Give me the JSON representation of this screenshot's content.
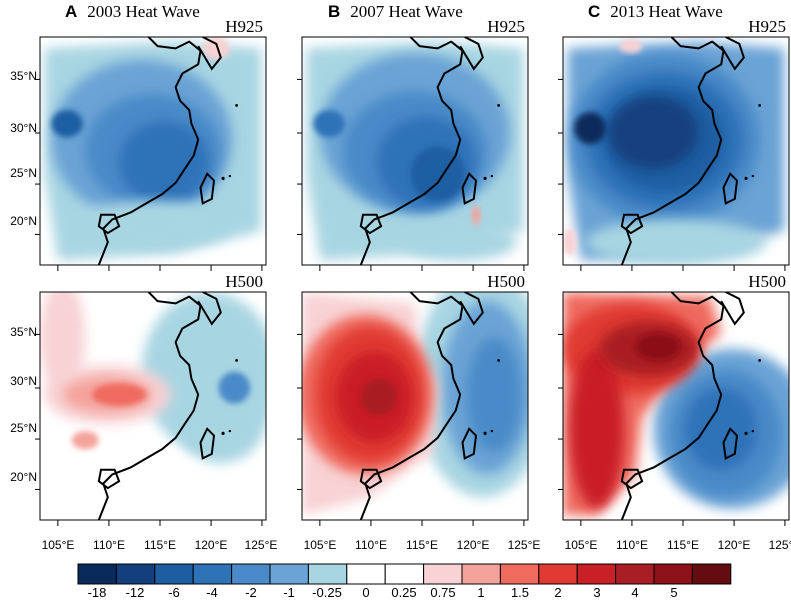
{
  "columns": [
    {
      "letter": "A",
      "title": "2003 Heat Wave"
    },
    {
      "letter": "B",
      "title": "2007 Heat Wave"
    },
    {
      "letter": "C",
      "title": "2013 Heat Wave"
    }
  ],
  "rows": [
    {
      "level": "H925"
    },
    {
      "level": "H500"
    }
  ],
  "lat_ticks": [
    "35°N",
    "30°N",
    "25°N",
    "20°N"
  ],
  "lon_ticks": [
    "105°E",
    "110°E",
    "115°E",
    "120°E",
    "125°E"
  ],
  "colorbar": {
    "labels": [
      "-18",
      "-12",
      "-6",
      "-4",
      "-2",
      "-1",
      "-0.25",
      "0",
      "0.25",
      "0.75",
      "1",
      "1.5",
      "2",
      "3",
      "4",
      "5"
    ],
    "colors": [
      "#0b2a5c",
      "#133f7f",
      "#1d5ea2",
      "#2e72b8",
      "#4a8ac8",
      "#6aa3d5",
      "#a8d5e2",
      "#ffffff",
      "#ffffff",
      "#f8d2d4",
      "#f4a39c",
      "#ef6b5e",
      "#e03a33",
      "#c91f26",
      "#a91e24",
      "#8c1118",
      "#650c10"
    ]
  },
  "chart_data": [
    {
      "panel": "A",
      "title": "2003 Heat Wave",
      "level": "H925",
      "type": "heatmap",
      "pattern": "negative anomalies (-6 to -1) over eastern China, weak near Korea",
      "xlim": [
        103,
        127
      ],
      "ylim": [
        15,
        39
      ]
    },
    {
      "panel": "B",
      "title": "2007 Heat Wave",
      "level": "H925",
      "type": "heatmap",
      "pattern": "negative anomalies (-6 to -2) over southern and eastern China",
      "xlim": [
        103,
        127
      ],
      "ylim": [
        15,
        39
      ]
    },
    {
      "panel": "C",
      "title": "2013 Heat Wave",
      "level": "H925",
      "type": "heatmap",
      "pattern": "strong negative anomalies (-18 to -4) over central-eastern China",
      "xlim": [
        103,
        127
      ],
      "ylim": [
        15,
        39
      ]
    },
    {
      "panel": "A",
      "title": "2003 Heat Wave",
      "level": "H500",
      "type": "heatmap",
      "pattern": "weak positive anomaly (1 to 1.5) near 110°E 27°N, weak negative east",
      "xlim": [
        103,
        127
      ],
      "ylim": [
        15,
        39
      ]
    },
    {
      "panel": "B",
      "title": "2007 Heat Wave",
      "level": "H500",
      "type": "heatmap",
      "pattern": "positive anomaly (2 to 4) over western/southern China, negative (-2) east",
      "xlim": [
        103,
        127
      ],
      "ylim": [
        15,
        39
      ]
    },
    {
      "panel": "C",
      "title": "2013 Heat Wave",
      "level": "H500",
      "type": "heatmap",
      "pattern": "positive anomaly (3 to 5) over central China, negative (-4) over southeast coast",
      "xlim": [
        103,
        127
      ],
      "ylim": [
        15,
        39
      ]
    }
  ]
}
